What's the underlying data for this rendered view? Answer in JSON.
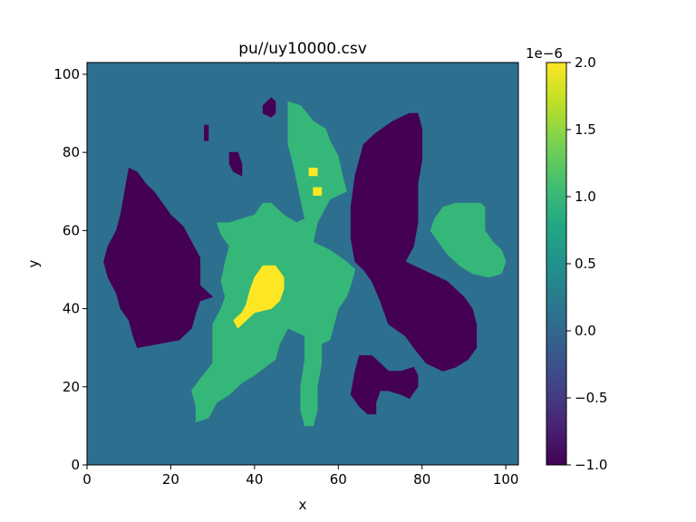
{
  "chart_data": {
    "type": "heatmap",
    "title": "pu//uy10000.csv",
    "xlabel": "x",
    "ylabel": "y",
    "xlim": [
      0,
      103
    ],
    "ylim": [
      0,
      103
    ],
    "x_ticks": [
      "0",
      "20",
      "40",
      "60",
      "80",
      "100"
    ],
    "y_ticks": [
      "0",
      "20",
      "40",
      "60",
      "80",
      "100"
    ],
    "colorbar": {
      "colormap": "viridis",
      "range": [
        -1.0,
        2.0
      ],
      "multiplier_label": "1e−6",
      "ticks": [
        "−1.0",
        "−0.5",
        "0.0",
        "0.5",
        "1.0",
        "1.5",
        "2.0"
      ]
    },
    "levels": [
      {
        "value": -1.0,
        "color": "#440154"
      },
      {
        "value": 0.0,
        "color": "#2d6f8e"
      },
      {
        "value": 1.0,
        "color": "#35b779"
      },
      {
        "value": 2.0,
        "color": "#fde725"
      }
    ],
    "regions": [
      {
        "level": 0.0,
        "polygon": [
          [
            0,
            0
          ],
          [
            103,
            0
          ],
          [
            103,
            103
          ],
          [
            0,
            103
          ]
        ]
      },
      {
        "level": -1.0,
        "polygon": [
          [
            10,
            76
          ],
          [
            12,
            75
          ],
          [
            14,
            72
          ],
          [
            16,
            70
          ],
          [
            18,
            67
          ],
          [
            20,
            64
          ],
          [
            23,
            61
          ],
          [
            25,
            57
          ],
          [
            27,
            53
          ],
          [
            27,
            46
          ],
          [
            29,
            44
          ],
          [
            30,
            43
          ],
          [
            27,
            42
          ],
          [
            26,
            39
          ],
          [
            25,
            35
          ],
          [
            22,
            32
          ],
          [
            17,
            31
          ],
          [
            12,
            30
          ],
          [
            11,
            33
          ],
          [
            10,
            37
          ],
          [
            8,
            40
          ],
          [
            7,
            44
          ],
          [
            5,
            48
          ],
          [
            4,
            52
          ],
          [
            5,
            56
          ],
          [
            7,
            60
          ],
          [
            8,
            64
          ],
          [
            9,
            70
          ]
        ]
      },
      {
        "level": -1.0,
        "polygon": [
          [
            66,
            82
          ],
          [
            69,
            85
          ],
          [
            73,
            88
          ],
          [
            77,
            90
          ],
          [
            79,
            90
          ],
          [
            80,
            86
          ],
          [
            80,
            78
          ],
          [
            79,
            72
          ],
          [
            79,
            66
          ],
          [
            79,
            62
          ],
          [
            78,
            56
          ],
          [
            76,
            52
          ],
          [
            80,
            50
          ],
          [
            86,
            47
          ],
          [
            90,
            43
          ],
          [
            92,
            40
          ],
          [
            93,
            36
          ],
          [
            93,
            30
          ],
          [
            91,
            27
          ],
          [
            88,
            25
          ],
          [
            85,
            24
          ],
          [
            81,
            26
          ],
          [
            78,
            30
          ],
          [
            76,
            33
          ],
          [
            72,
            36
          ],
          [
            70,
            42
          ],
          [
            68,
            47
          ],
          [
            66,
            50
          ],
          [
            64,
            52
          ],
          [
            63,
            58
          ],
          [
            63,
            66
          ],
          [
            64,
            74
          ]
        ]
      },
      {
        "level": -1.0,
        "polygon": [
          [
            65,
            28
          ],
          [
            68,
            28
          ],
          [
            70,
            26
          ],
          [
            72,
            24
          ],
          [
            75,
            24
          ],
          [
            78,
            25
          ],
          [
            79,
            23
          ],
          [
            79,
            20
          ],
          [
            77,
            17
          ],
          [
            75,
            18
          ],
          [
            72,
            19
          ],
          [
            70,
            19
          ],
          [
            69,
            16
          ],
          [
            69,
            13
          ],
          [
            67,
            13
          ],
          [
            65,
            15
          ],
          [
            63,
            18
          ],
          [
            64,
            24
          ]
        ]
      },
      {
        "level": -1.0,
        "polygon": [
          [
            43,
            93
          ],
          [
            44,
            94
          ],
          [
            45,
            93
          ],
          [
            45,
            90
          ],
          [
            44,
            89
          ],
          [
            42,
            90
          ],
          [
            42,
            92
          ]
        ]
      },
      {
        "level": -1.0,
        "polygon": [
          [
            28,
            87
          ],
          [
            29,
            87
          ],
          [
            29,
            83
          ],
          [
            28,
            83
          ]
        ]
      },
      {
        "level": -1.0,
        "polygon": [
          [
            34,
            80
          ],
          [
            36,
            80
          ],
          [
            37,
            77
          ],
          [
            37,
            74
          ],
          [
            35,
            75
          ],
          [
            34,
            77
          ]
        ]
      },
      {
        "level": 1.0,
        "polygon": [
          [
            48,
            93
          ],
          [
            51,
            92
          ],
          [
            54,
            88
          ],
          [
            57,
            86
          ],
          [
            58,
            83
          ],
          [
            60,
            79
          ],
          [
            61,
            74
          ],
          [
            62,
            70
          ],
          [
            58,
            68
          ],
          [
            56,
            64
          ],
          [
            55,
            62
          ],
          [
            54,
            57
          ],
          [
            58,
            55
          ],
          [
            62,
            52
          ],
          [
            64,
            50
          ],
          [
            63,
            46
          ],
          [
            62,
            43
          ],
          [
            60,
            40
          ],
          [
            59,
            36
          ],
          [
            58,
            32
          ],
          [
            56,
            31
          ],
          [
            56,
            26
          ],
          [
            55,
            20
          ],
          [
            55,
            14
          ],
          [
            54,
            10
          ],
          [
            52,
            10
          ],
          [
            51,
            14
          ],
          [
            51,
            20
          ],
          [
            52,
            27
          ],
          [
            52,
            33
          ],
          [
            48,
            35
          ],
          [
            46,
            31
          ],
          [
            45,
            27
          ],
          [
            40,
            23
          ],
          [
            37,
            21
          ],
          [
            34,
            18
          ],
          [
            31,
            16
          ],
          [
            29,
            12
          ],
          [
            26,
            11
          ],
          [
            26,
            15
          ],
          [
            25,
            19
          ],
          [
            27,
            22
          ],
          [
            30,
            26
          ],
          [
            30,
            30
          ],
          [
            30,
            36
          ],
          [
            32,
            40
          ],
          [
            33,
            43
          ],
          [
            32,
            47
          ],
          [
            33,
            52
          ],
          [
            34,
            56
          ],
          [
            32,
            59
          ],
          [
            31,
            62
          ],
          [
            34,
            62
          ],
          [
            37,
            63
          ],
          [
            40,
            64
          ],
          [
            42,
            67
          ],
          [
            44,
            67
          ],
          [
            47,
            64
          ],
          [
            50,
            62
          ],
          [
            52,
            63
          ],
          [
            51,
            68
          ],
          [
            50,
            73
          ],
          [
            49,
            78
          ],
          [
            48,
            82
          ],
          [
            48,
            88
          ]
        ]
      },
      {
        "level": 1.0,
        "polygon": [
          [
            85,
            66
          ],
          [
            88,
            67
          ],
          [
            91,
            67
          ],
          [
            94,
            67
          ],
          [
            95,
            66
          ],
          [
            95,
            60
          ],
          [
            97,
            57
          ],
          [
            99,
            55
          ],
          [
            100,
            52
          ],
          [
            99,
            49
          ],
          [
            96,
            48
          ],
          [
            92,
            49
          ],
          [
            89,
            51
          ],
          [
            86,
            54
          ],
          [
            84,
            57
          ],
          [
            82,
            60
          ],
          [
            83,
            63
          ]
        ]
      },
      {
        "level": 2.0,
        "polygon": [
          [
            42,
            51
          ],
          [
            45,
            51
          ],
          [
            47,
            48
          ],
          [
            47,
            45
          ],
          [
            46,
            42
          ],
          [
            44,
            40
          ],
          [
            40,
            39
          ],
          [
            38,
            37
          ],
          [
            36,
            35
          ],
          [
            35,
            37
          ],
          [
            37,
            39
          ],
          [
            38,
            41
          ],
          [
            39,
            45
          ],
          [
            40,
            48
          ]
        ]
      },
      {
        "level": 2.0,
        "polygon": [
          [
            53,
            76
          ],
          [
            55,
            76
          ],
          [
            55,
            74
          ],
          [
            53,
            74
          ]
        ]
      },
      {
        "level": 2.0,
        "polygon": [
          [
            54,
            71
          ],
          [
            56,
            71
          ],
          [
            56,
            69
          ],
          [
            54,
            69
          ]
        ]
      }
    ]
  }
}
